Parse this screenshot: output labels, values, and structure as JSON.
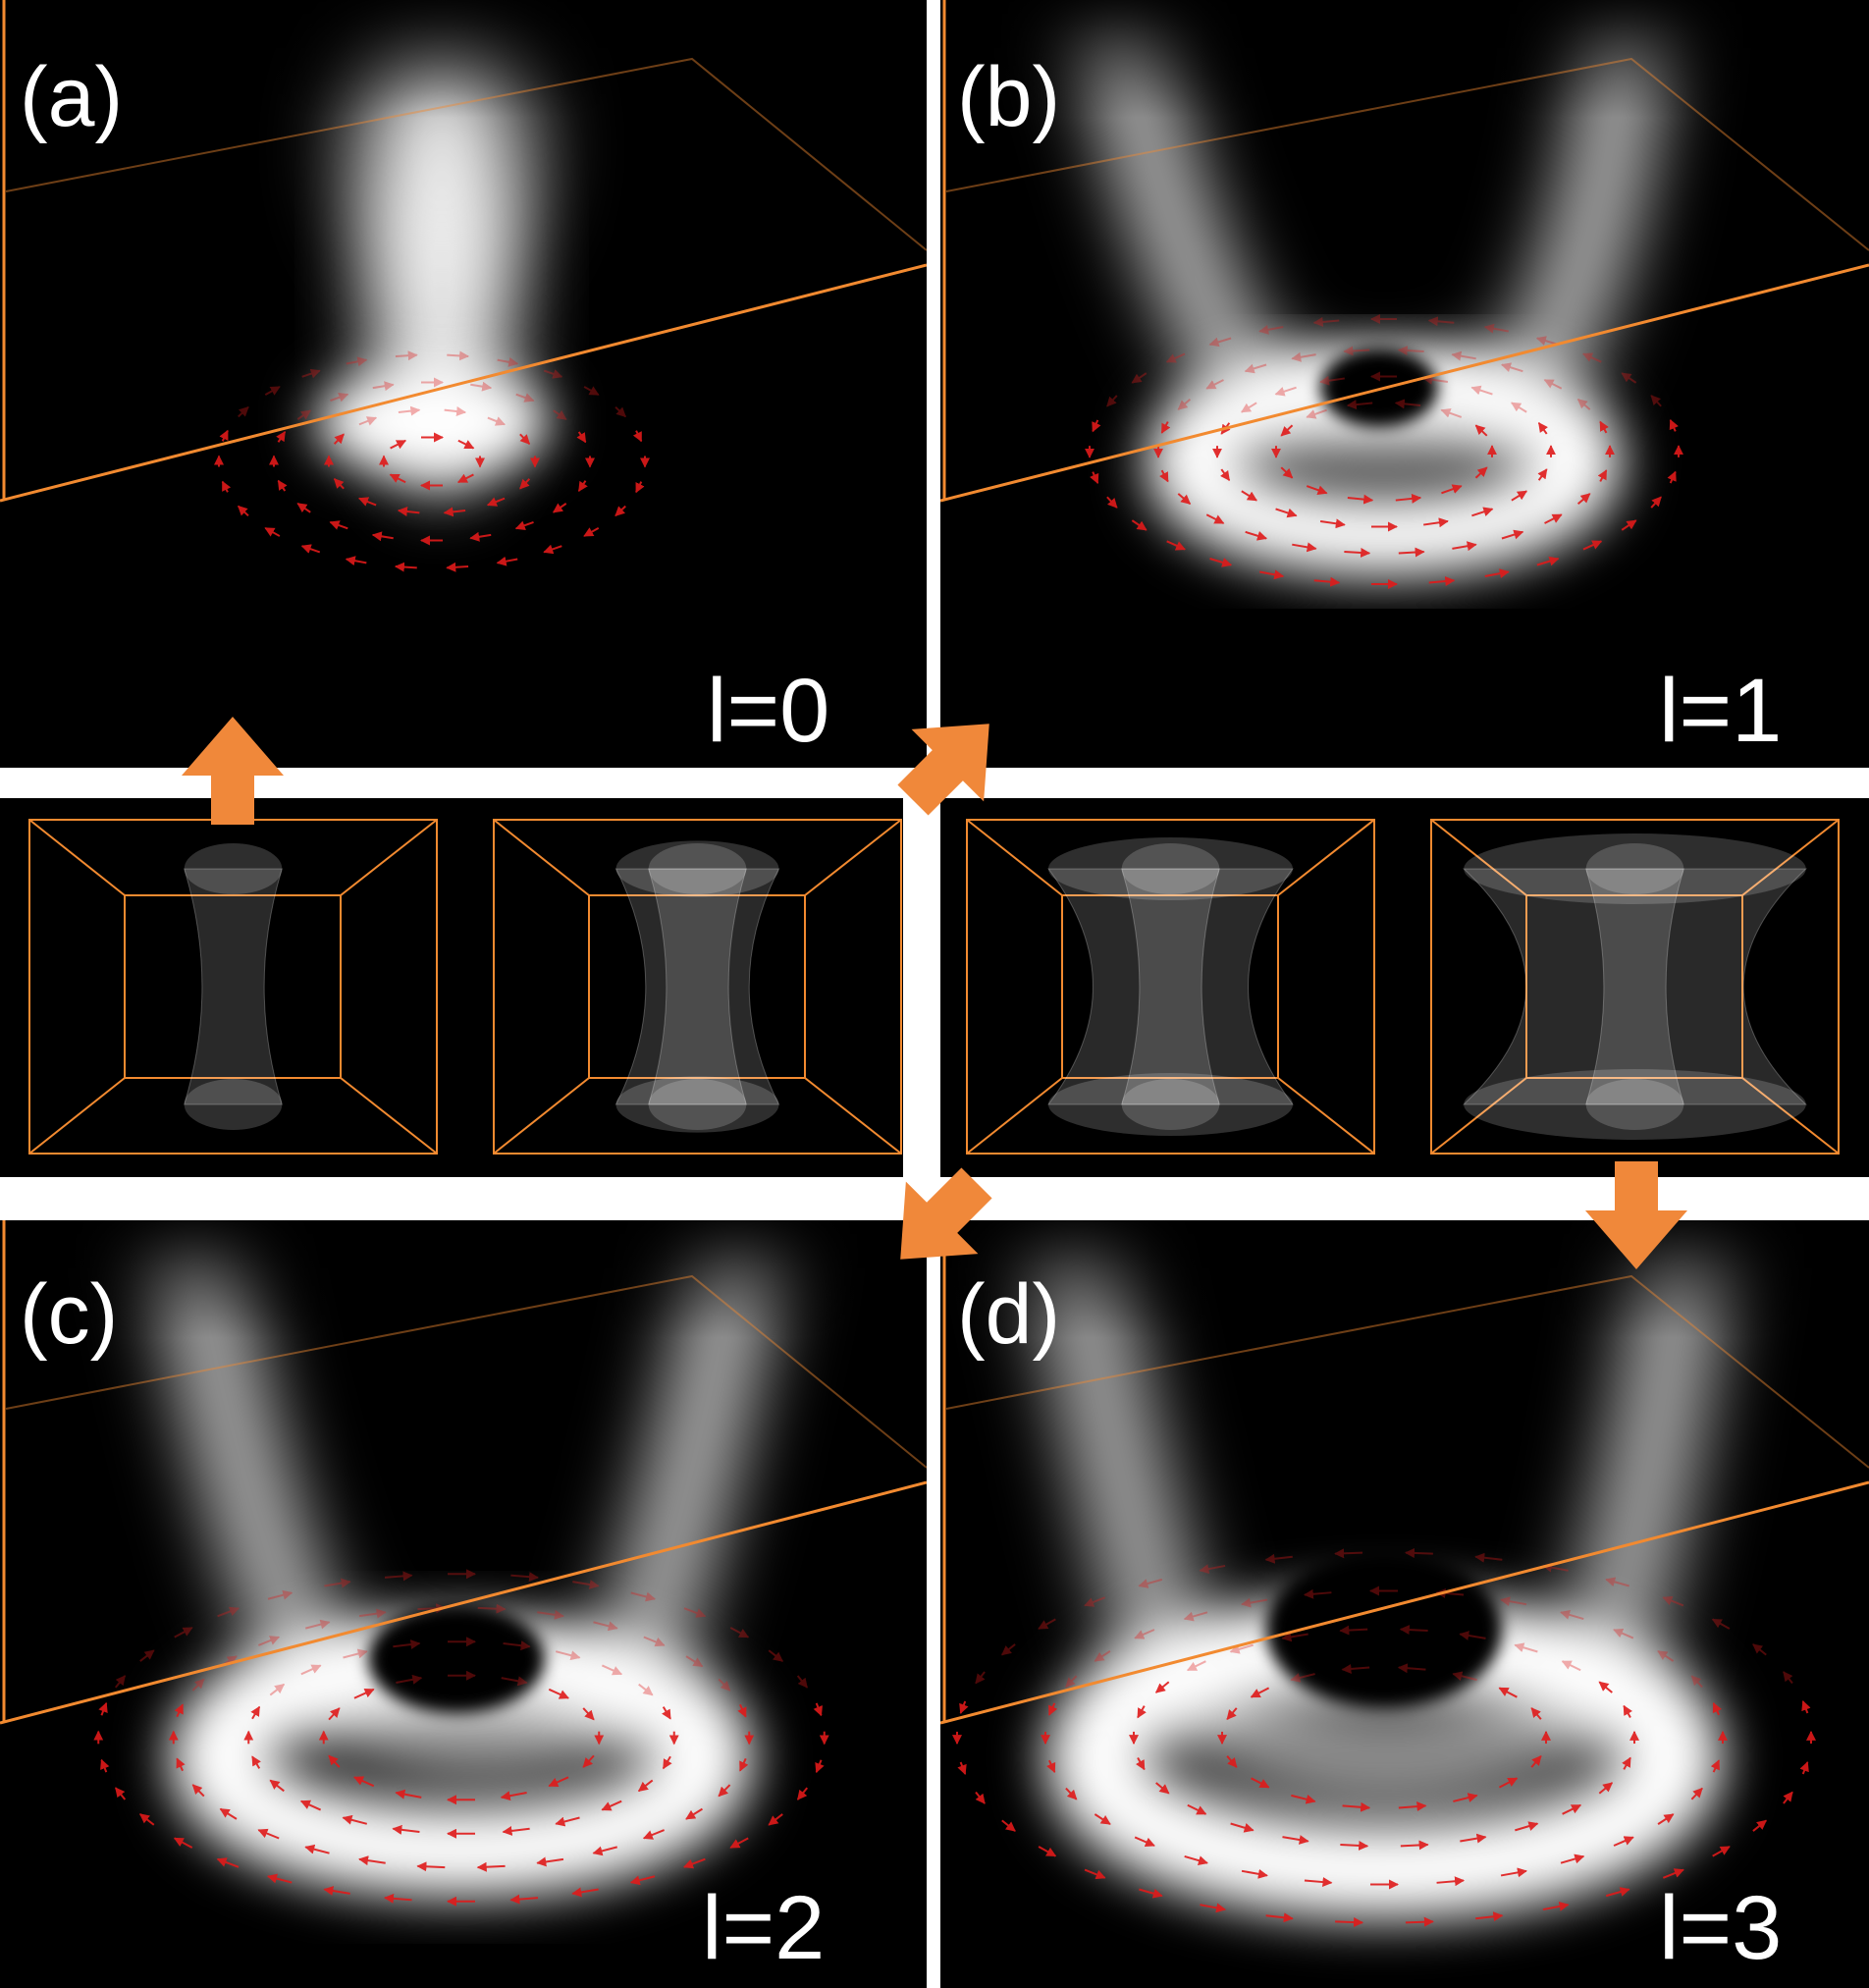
{
  "panels": [
    {
      "id": "a",
      "label": "(a)",
      "mode": "l=0",
      "l": 0
    },
    {
      "id": "b",
      "label": "(b)",
      "mode": "l=1",
      "l": 1
    },
    {
      "id": "c",
      "label": "(c)",
      "mode": "l=2",
      "l": 2
    },
    {
      "id": "d",
      "label": "(d)",
      "mode": "l=3",
      "l": 3
    }
  ],
  "colors": {
    "background": "#000000",
    "frame": "#f28a30",
    "arrow": "#f0883a",
    "vector": "#e01a1a",
    "beam": "#ffffff",
    "separator": "#ffffff"
  },
  "icons": [
    "orange-arrow-icon"
  ]
}
